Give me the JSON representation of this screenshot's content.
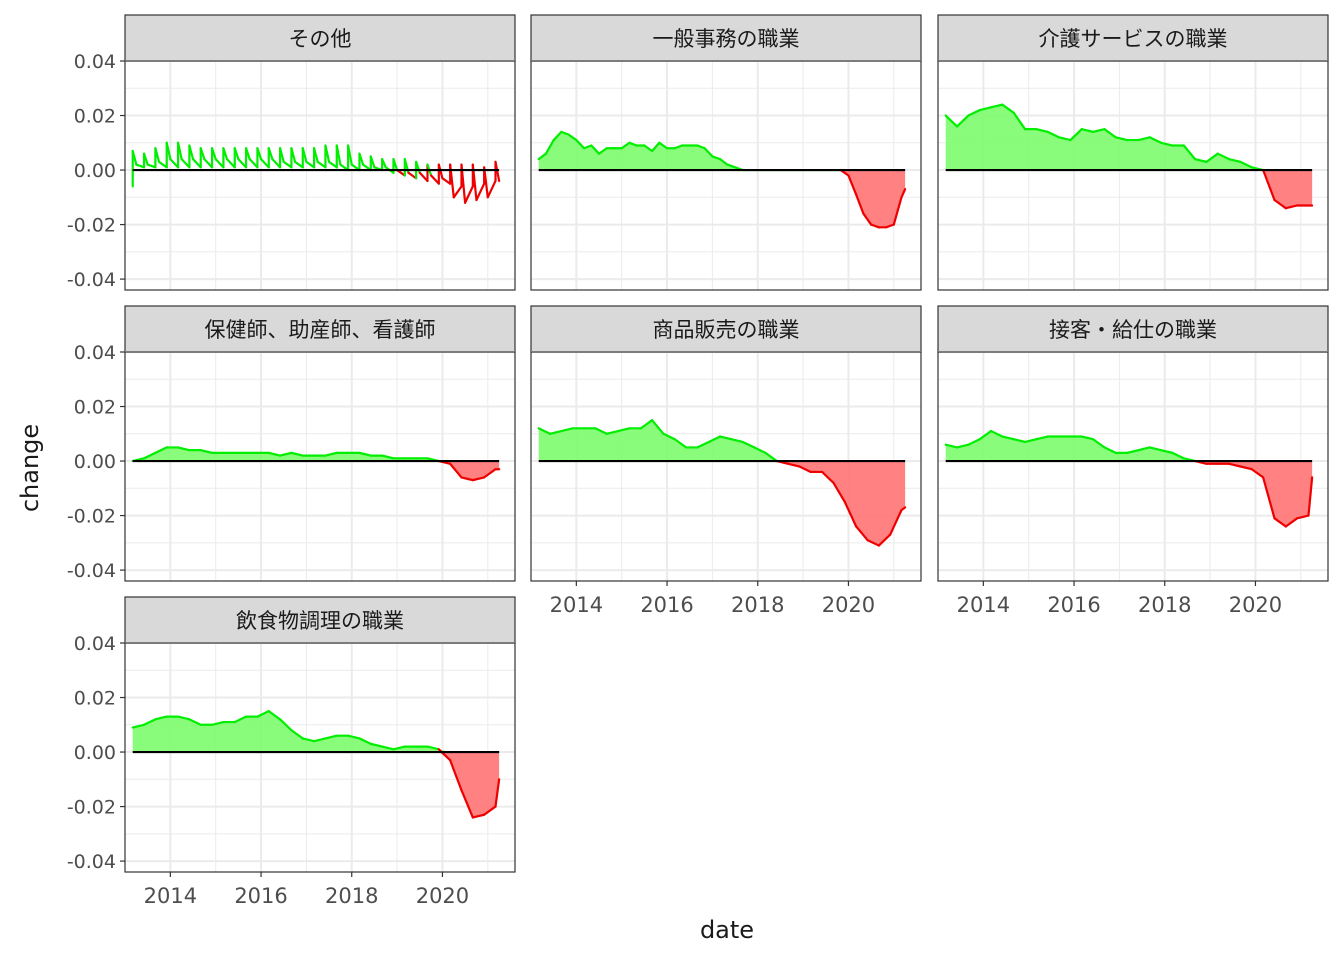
{
  "chart_data": {
    "type": "area",
    "xlabel": "date",
    "ylabel": "change",
    "xlim": [
      2013.0,
      2021.6
    ],
    "ylim": [
      -0.044,
      0.04
    ],
    "x_ticks": [
      2014,
      2016,
      2018,
      2020
    ],
    "x_tick_labels": [
      "2014",
      "2016",
      "2018",
      "2020"
    ],
    "y_ticks": [
      0.04,
      0.02,
      0.0,
      -0.02,
      -0.04
    ],
    "y_tick_labels": [
      "0.04",
      "0.02",
      "0.00",
      "-0.02",
      "-0.04"
    ],
    "grid": true,
    "legend": "none",
    "colors": {
      "positive_line": "#00ee00",
      "positive_fill": "#7dfc6e",
      "negative_line": "#ee0000",
      "negative_fill": "#ff7373",
      "baseline": "#000000",
      "strip_bg": "#d9d9d9",
      "grid": "#ebebeb"
    },
    "panels": [
      {
        "title": "その他",
        "style": "spikes",
        "x": [
          2013.17,
          2013.17,
          2013.25,
          2013.42,
          2013.42,
          2013.5,
          2013.67,
          2013.67,
          2013.75,
          2013.92,
          2013.92,
          2014.0,
          2014.17,
          2014.17,
          2014.25,
          2014.42,
          2014.42,
          2014.5,
          2014.67,
          2014.67,
          2014.75,
          2014.92,
          2014.92,
          2015.0,
          2015.17,
          2015.17,
          2015.25,
          2015.42,
          2015.42,
          2015.5,
          2015.67,
          2015.67,
          2015.75,
          2015.92,
          2015.92,
          2016.0,
          2016.17,
          2016.17,
          2016.25,
          2016.42,
          2016.42,
          2016.5,
          2016.67,
          2016.67,
          2016.75,
          2016.92,
          2016.92,
          2017.0,
          2017.17,
          2017.17,
          2017.25,
          2017.42,
          2017.42,
          2017.5,
          2017.67,
          2017.67,
          2017.75,
          2017.92,
          2017.92,
          2018.0,
          2018.17,
          2018.17,
          2018.25,
          2018.42,
          2018.42,
          2018.5,
          2018.67,
          2018.67,
          2018.75,
          2018.92,
          2018.92,
          2019.0,
          2019.17,
          2019.17,
          2019.25,
          2019.42,
          2019.42,
          2019.5,
          2019.67,
          2019.67,
          2019.75,
          2019.92,
          2019.92,
          2020.0,
          2020.17,
          2020.17,
          2020.25,
          2020.42,
          2020.42,
          2020.5,
          2020.67,
          2020.67,
          2020.75,
          2020.92,
          2020.92,
          2021.0,
          2021.17,
          2021.17,
          2021.25
        ],
        "values": [
          -0.006,
          0.007,
          0.002,
          0.001,
          0.006,
          0.002,
          0.001,
          0.008,
          0.003,
          0.001,
          0.01,
          0.004,
          0.001,
          0.01,
          0.004,
          0.001,
          0.009,
          0.004,
          0.001,
          0.008,
          0.004,
          0.001,
          0.008,
          0.004,
          0.001,
          0.008,
          0.004,
          0.001,
          0.008,
          0.004,
          0.001,
          0.008,
          0.004,
          0.001,
          0.008,
          0.004,
          0.001,
          0.008,
          0.004,
          0.001,
          0.008,
          0.003,
          0.001,
          0.008,
          0.003,
          0.001,
          0.008,
          0.003,
          0.001,
          0.008,
          0.003,
          0.001,
          0.009,
          0.003,
          0.001,
          0.009,
          0.002,
          0.0,
          0.009,
          0.002,
          0.0,
          0.006,
          0.002,
          0.0,
          0.005,
          0.001,
          0.0,
          0.004,
          0.001,
          -0.001,
          0.004,
          0.0,
          -0.002,
          0.004,
          -0.001,
          -0.003,
          0.003,
          -0.001,
          -0.004,
          0.002,
          -0.002,
          -0.005,
          0.002,
          -0.003,
          -0.005,
          0.002,
          -0.01,
          -0.006,
          0.002,
          -0.012,
          -0.006,
          0.002,
          -0.011,
          -0.005,
          0.001,
          -0.01,
          -0.004,
          0.003,
          -0.004
        ]
      },
      {
        "title": "一般事務の職業",
        "style": "area",
        "x": [
          2013.17,
          2013.33,
          2013.5,
          2013.67,
          2013.83,
          2014.0,
          2014.17,
          2014.33,
          2014.5,
          2014.67,
          2014.83,
          2015.0,
          2015.17,
          2015.33,
          2015.5,
          2015.67,
          2015.83,
          2016.0,
          2016.17,
          2016.33,
          2016.5,
          2016.67,
          2016.83,
          2017.0,
          2017.17,
          2017.33,
          2017.5,
          2017.67,
          2017.83,
          2018.0,
          2018.17,
          2018.33,
          2018.5,
          2018.67,
          2018.83,
          2019.0,
          2019.17,
          2019.33,
          2019.5,
          2019.67,
          2019.83,
          2020.0,
          2020.17,
          2020.33,
          2020.5,
          2020.67,
          2020.83,
          2021.0,
          2021.17,
          2021.25
        ],
        "values": [
          0.004,
          0.006,
          0.011,
          0.014,
          0.013,
          0.011,
          0.008,
          0.009,
          0.006,
          0.008,
          0.008,
          0.008,
          0.01,
          0.009,
          0.009,
          0.007,
          0.01,
          0.008,
          0.008,
          0.009,
          0.009,
          0.009,
          0.008,
          0.005,
          0.004,
          0.002,
          0.001,
          0.0,
          0.0,
          0.0,
          0.0,
          0.0,
          0.0,
          0.0,
          0.0,
          0.0,
          0.0,
          0.0,
          0.0,
          0.0,
          0.0,
          -0.002,
          -0.009,
          -0.016,
          -0.02,
          -0.021,
          -0.021,
          -0.02,
          -0.01,
          -0.007
        ]
      },
      {
        "title": "介護サービスの職業",
        "style": "area",
        "x": [
          2013.17,
          2013.42,
          2013.67,
          2013.92,
          2014.17,
          2014.42,
          2014.67,
          2014.92,
          2015.17,
          2015.42,
          2015.67,
          2015.92,
          2016.17,
          2016.42,
          2016.67,
          2016.92,
          2017.17,
          2017.42,
          2017.67,
          2017.92,
          2018.17,
          2018.42,
          2018.67,
          2018.92,
          2019.17,
          2019.42,
          2019.67,
          2019.92,
          2020.17,
          2020.42,
          2020.67,
          2020.92,
          2021.17,
          2021.25
        ],
        "values": [
          0.02,
          0.016,
          0.02,
          0.022,
          0.023,
          0.024,
          0.021,
          0.015,
          0.015,
          0.014,
          0.012,
          0.011,
          0.015,
          0.014,
          0.015,
          0.012,
          0.011,
          0.011,
          0.012,
          0.01,
          0.009,
          0.009,
          0.004,
          0.003,
          0.006,
          0.004,
          0.003,
          0.001,
          0.0,
          -0.011,
          -0.014,
          -0.013,
          -0.013,
          -0.013
        ]
      },
      {
        "title": "保健師、助産師、看護師",
        "style": "area",
        "x": [
          2013.17,
          2013.42,
          2013.67,
          2013.92,
          2014.17,
          2014.42,
          2014.67,
          2014.92,
          2015.17,
          2015.42,
          2015.67,
          2015.92,
          2016.17,
          2016.42,
          2016.67,
          2016.92,
          2017.17,
          2017.42,
          2017.67,
          2017.92,
          2018.17,
          2018.42,
          2018.67,
          2018.92,
          2019.17,
          2019.42,
          2019.67,
          2019.92,
          2020.17,
          2020.42,
          2020.67,
          2020.92,
          2021.17,
          2021.25
        ],
        "values": [
          0.0,
          0.001,
          0.003,
          0.005,
          0.005,
          0.004,
          0.004,
          0.003,
          0.003,
          0.003,
          0.003,
          0.003,
          0.003,
          0.002,
          0.003,
          0.002,
          0.002,
          0.002,
          0.003,
          0.003,
          0.003,
          0.002,
          0.002,
          0.001,
          0.001,
          0.001,
          0.001,
          0.0,
          -0.001,
          -0.006,
          -0.007,
          -0.006,
          -0.003,
          -0.003
        ]
      },
      {
        "title": "商品販売の職業",
        "style": "area",
        "x": [
          2013.17,
          2013.42,
          2013.67,
          2013.92,
          2014.17,
          2014.42,
          2014.67,
          2014.92,
          2015.17,
          2015.42,
          2015.67,
          2015.92,
          2016.17,
          2016.42,
          2016.67,
          2016.92,
          2017.17,
          2017.42,
          2017.67,
          2017.92,
          2018.17,
          2018.42,
          2018.67,
          2018.92,
          2019.17,
          2019.42,
          2019.67,
          2019.92,
          2020.17,
          2020.42,
          2020.67,
          2020.92,
          2021.17,
          2021.25
        ],
        "values": [
          0.012,
          0.01,
          0.011,
          0.012,
          0.012,
          0.012,
          0.01,
          0.011,
          0.012,
          0.012,
          0.015,
          0.01,
          0.008,
          0.005,
          0.005,
          0.007,
          0.009,
          0.008,
          0.007,
          0.005,
          0.003,
          0.0,
          -0.001,
          -0.002,
          -0.004,
          -0.004,
          -0.008,
          -0.015,
          -0.024,
          -0.029,
          -0.031,
          -0.027,
          -0.018,
          -0.017
        ]
      },
      {
        "title": "接客・給仕の職業",
        "style": "area",
        "x": [
          2013.17,
          2013.42,
          2013.67,
          2013.92,
          2014.17,
          2014.42,
          2014.67,
          2014.92,
          2015.17,
          2015.42,
          2015.67,
          2015.92,
          2016.17,
          2016.42,
          2016.67,
          2016.92,
          2017.17,
          2017.42,
          2017.67,
          2017.92,
          2018.17,
          2018.42,
          2018.67,
          2018.92,
          2019.17,
          2019.42,
          2019.67,
          2019.92,
          2020.17,
          2020.42,
          2020.67,
          2020.92,
          2021.17,
          2021.25
        ],
        "values": [
          0.006,
          0.005,
          0.006,
          0.008,
          0.011,
          0.009,
          0.008,
          0.007,
          0.008,
          0.009,
          0.009,
          0.009,
          0.009,
          0.008,
          0.005,
          0.003,
          0.003,
          0.004,
          0.005,
          0.004,
          0.003,
          0.001,
          0.0,
          -0.001,
          -0.001,
          -0.001,
          -0.002,
          -0.003,
          -0.006,
          -0.021,
          -0.024,
          -0.021,
          -0.02,
          -0.006
        ]
      },
      {
        "title": "飲食物調理の職業",
        "style": "area",
        "x": [
          2013.17,
          2013.42,
          2013.67,
          2013.92,
          2014.17,
          2014.42,
          2014.67,
          2014.92,
          2015.17,
          2015.42,
          2015.67,
          2015.92,
          2016.17,
          2016.42,
          2016.67,
          2016.92,
          2017.17,
          2017.42,
          2017.67,
          2017.92,
          2018.17,
          2018.42,
          2018.67,
          2018.92,
          2019.17,
          2019.42,
          2019.67,
          2019.92,
          2020.17,
          2020.42,
          2020.67,
          2020.92,
          2021.17,
          2021.25
        ],
        "values": [
          0.009,
          0.01,
          0.012,
          0.013,
          0.013,
          0.012,
          0.01,
          0.01,
          0.011,
          0.011,
          0.013,
          0.013,
          0.015,
          0.012,
          0.008,
          0.005,
          0.004,
          0.005,
          0.006,
          0.006,
          0.005,
          0.003,
          0.002,
          0.001,
          0.002,
          0.002,
          0.002,
          0.001,
          -0.003,
          -0.014,
          -0.024,
          -0.023,
          -0.02,
          -0.01
        ]
      }
    ]
  }
}
